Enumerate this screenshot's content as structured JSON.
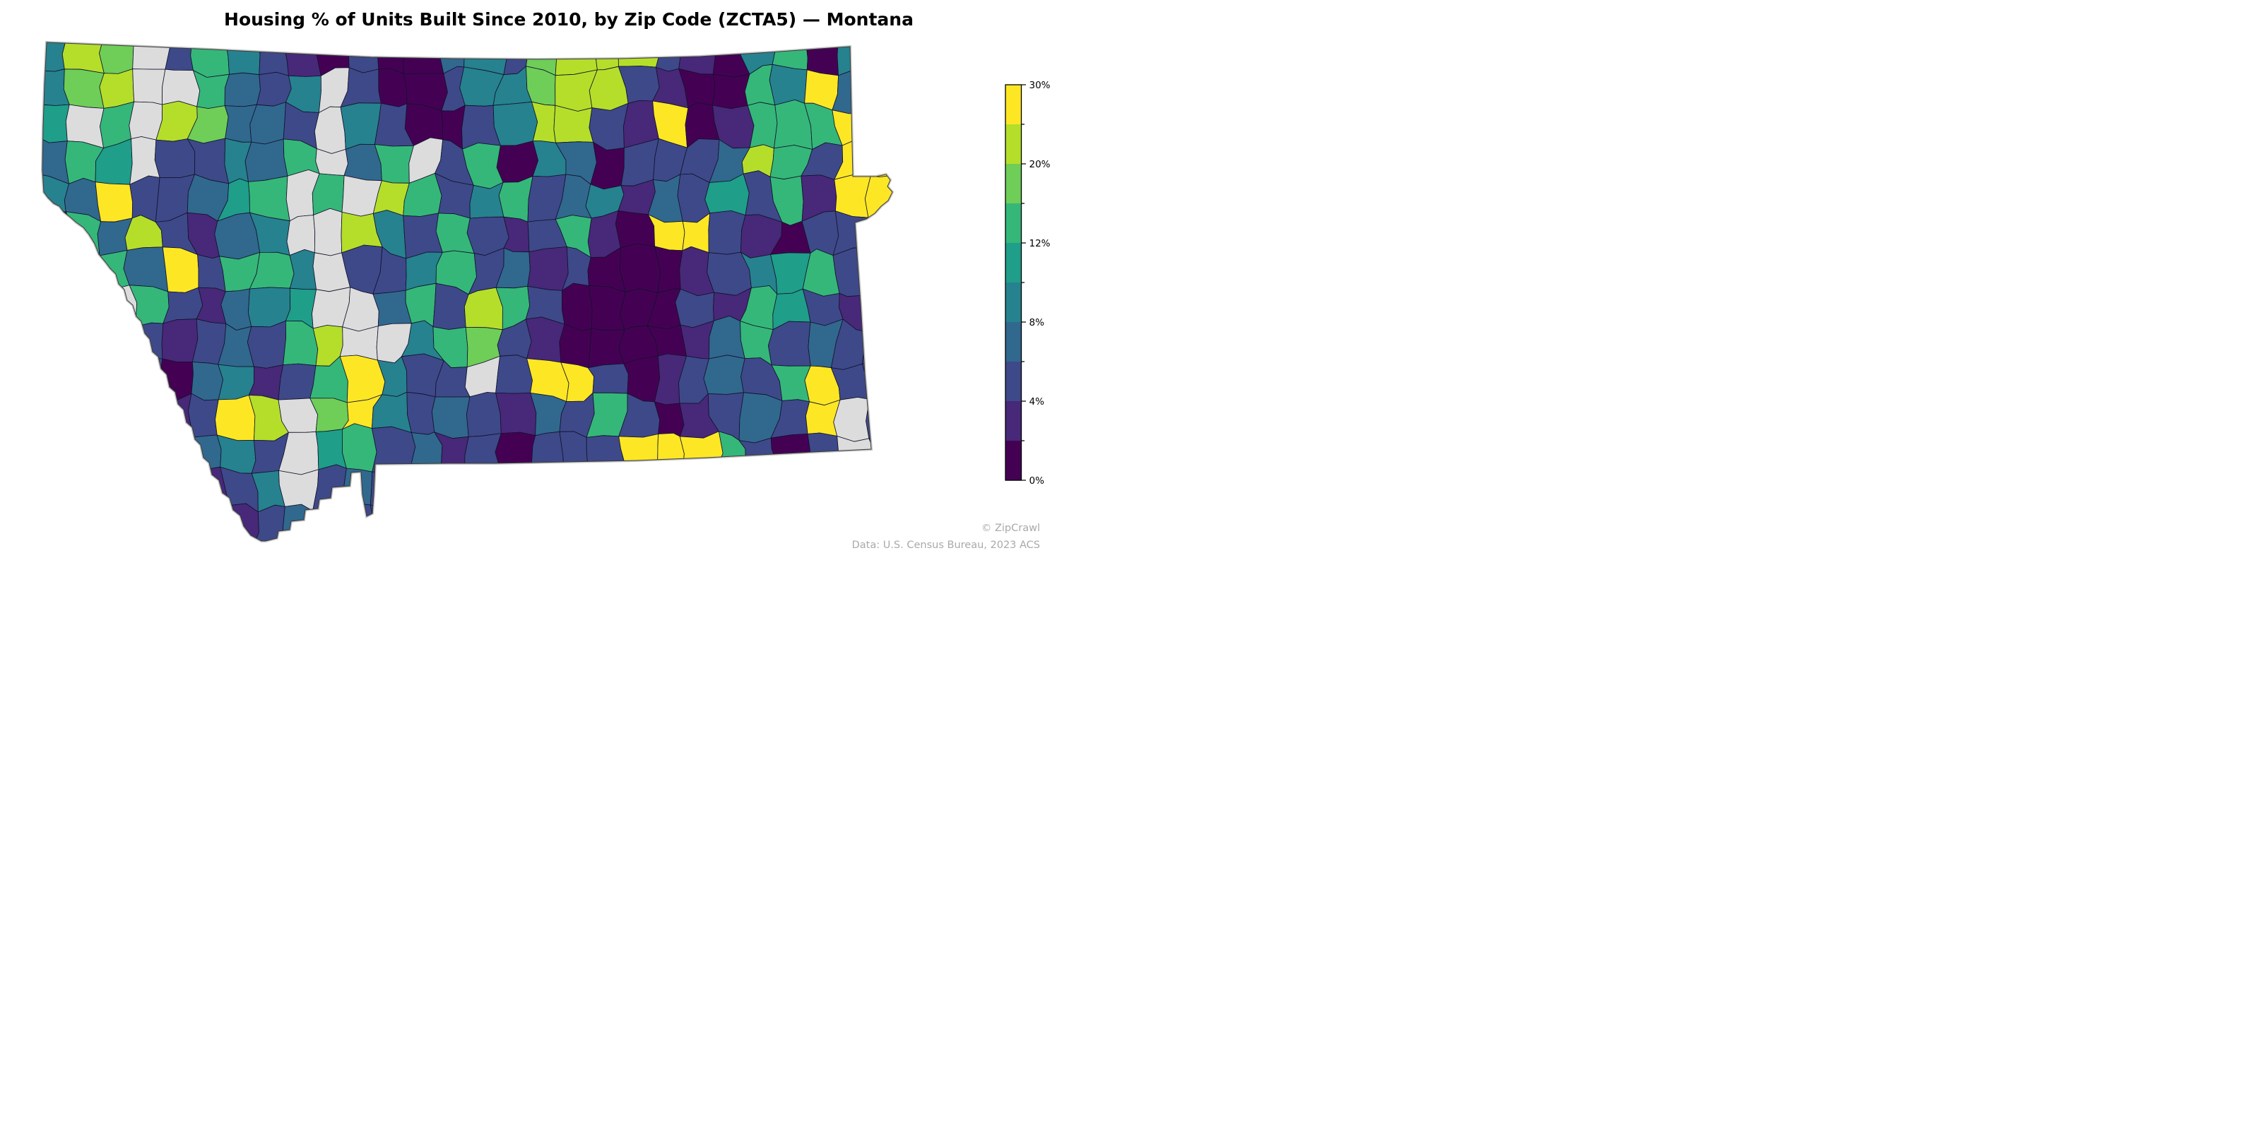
{
  "title": "Housing % of Units Built Since 2010, by Zip Code (ZCTA5) — Montana",
  "attribution": {
    "line1": "© ZipCrawl",
    "line2": "Data: U.S. Census Bureau, 2023 ACS"
  },
  "legend": {
    "tick_labels_top_to_bottom": [
      "30%",
      "20%",
      "12%",
      "8%",
      "4%",
      "0%"
    ],
    "colors_top_to_bottom": [
      "#fde725",
      "#b5de2b",
      "#6ece58",
      "#35b779",
      "#1f9e89",
      "#26828e",
      "#31688e",
      "#3e4989",
      "#482878",
      "#440154"
    ],
    "no_data_color": "#dcdcdc"
  },
  "chart_data": {
    "type": "choropleth",
    "title": "Housing % of Units Built Since 2010, by Zip Code (ZCTA5) — Montana",
    "geography": "Montana zip code tabulation areas (ZCTA5)",
    "metric": "Percent of housing units built since 2010",
    "colormap": "viridis, 10 discrete quantile bins (dark purple = low, yellow = high)",
    "colorbar_tick_labels_top_to_bottom": [
      "30%",
      "20%",
      "12%",
      "8%",
      "4%",
      "0%"
    ],
    "value_range": [
      "0%",
      "30%"
    ],
    "no_data": "light gray polygons indicate no data",
    "legend_position": "right",
    "per_region_values_labeled": false
  },
  "map": {
    "base_fill": "#3e4989",
    "cell_stroke": "#12122b",
    "outline_stroke": "#3a3a3a",
    "edge_shadow_color": "#c6c6c6",
    "palette": {
      "0": "#440154",
      "1": "#482878",
      "2": "#3e4989",
      "3": "#31688e",
      "4": "#26828e",
      "5": "#1f9e89",
      "6": "#35b779",
      "7": "#6ece58",
      "8": "#b5de2b",
      "9": "#fde725",
      "g": "#dcdcdc"
    },
    "grid": [
      "487g264210200342788821046044",
      "478gg6324g200244788210064933",
      "5g6g87332g420024882190166692",
      "365g22436g36g260430222386299",
      "43922356g6g86246234132526199",
      "06382134gg842621261099210223",
      "346392664g224623120001245622",
      "25g621345gg36286200002165212",
      "32g2123268gg4672100001362322",
      "43620341269422g2992012326922",
      "24231298g79423213262012329g2",
      "32602342g56231202229996202g2",
      "23230124g2322322222212222222",
      "2222001232222222222222222222"
    ],
    "outline": [
      [
        66,
        60
      ],
      [
        160,
        64
      ],
      [
        300,
        70
      ],
      [
        420,
        76
      ],
      [
        525,
        81
      ],
      [
        640,
        83
      ],
      [
        760,
        84
      ],
      [
        880,
        83
      ],
      [
        990,
        80
      ],
      [
        1090,
        74
      ],
      [
        1160,
        69
      ],
      [
        1203,
        66
      ],
      [
        1205,
        160
      ],
      [
        1207,
        250
      ],
      [
        1240,
        250
      ],
      [
        1254,
        247
      ],
      [
        1260,
        255
      ],
      [
        1256,
        264
      ],
      [
        1263,
        272
      ],
      [
        1257,
        284
      ],
      [
        1247,
        292
      ],
      [
        1238,
        302
      ],
      [
        1226,
        310
      ],
      [
        1210,
        315
      ],
      [
        1213,
        360
      ],
      [
        1218,
        430
      ],
      [
        1224,
        530
      ],
      [
        1233,
        636
      ],
      [
        1150,
        640
      ],
      [
        1075,
        644
      ],
      [
        1000,
        648
      ],
      [
        900,
        652
      ],
      [
        800,
        654
      ],
      [
        700,
        656
      ],
      [
        636,
        656
      ],
      [
        531,
        657
      ],
      [
        529,
        700
      ],
      [
        527,
        727
      ],
      [
        519,
        731
      ],
      [
        513,
        700
      ],
      [
        511,
        668
      ],
      [
        497,
        669
      ],
      [
        495,
        688
      ],
      [
        470,
        690
      ],
      [
        468,
        705
      ],
      [
        452,
        707
      ],
      [
        450,
        720
      ],
      [
        432,
        722
      ],
      [
        430,
        736
      ],
      [
        412,
        738
      ],
      [
        410,
        750
      ],
      [
        394,
        752
      ],
      [
        392,
        762
      ],
      [
        376,
        766
      ],
      [
        370,
        766
      ],
      [
        355,
        758
      ],
      [
        345,
        745
      ],
      [
        340,
        730
      ],
      [
        330,
        722
      ],
      [
        325,
        705
      ],
      [
        315,
        698
      ],
      [
        310,
        680
      ],
      [
        300,
        672
      ],
      [
        296,
        655
      ],
      [
        288,
        648
      ],
      [
        284,
        630
      ],
      [
        276,
        622
      ],
      [
        272,
        605
      ],
      [
        264,
        598
      ],
      [
        260,
        580
      ],
      [
        252,
        572
      ],
      [
        248,
        555
      ],
      [
        240,
        548
      ],
      [
        236,
        530
      ],
      [
        228,
        522
      ],
      [
        224,
        505
      ],
      [
        216,
        498
      ],
      [
        212,
        480
      ],
      [
        205,
        472
      ],
      [
        200,
        455
      ],
      [
        193,
        448
      ],
      [
        188,
        432
      ],
      [
        180,
        425
      ],
      [
        176,
        410
      ],
      [
        168,
        402
      ],
      [
        164,
        388
      ],
      [
        156,
        380
      ],
      [
        150,
        372
      ],
      [
        140,
        360
      ],
      [
        134,
        345
      ],
      [
        126,
        332
      ],
      [
        118,
        322
      ],
      [
        108,
        315
      ],
      [
        100,
        308
      ],
      [
        90,
        300
      ],
      [
        84,
        292
      ],
      [
        76,
        288
      ],
      [
        68,
        280
      ],
      [
        62,
        272
      ],
      [
        60,
        240
      ],
      [
        61,
        180
      ],
      [
        63,
        120
      ]
    ]
  }
}
